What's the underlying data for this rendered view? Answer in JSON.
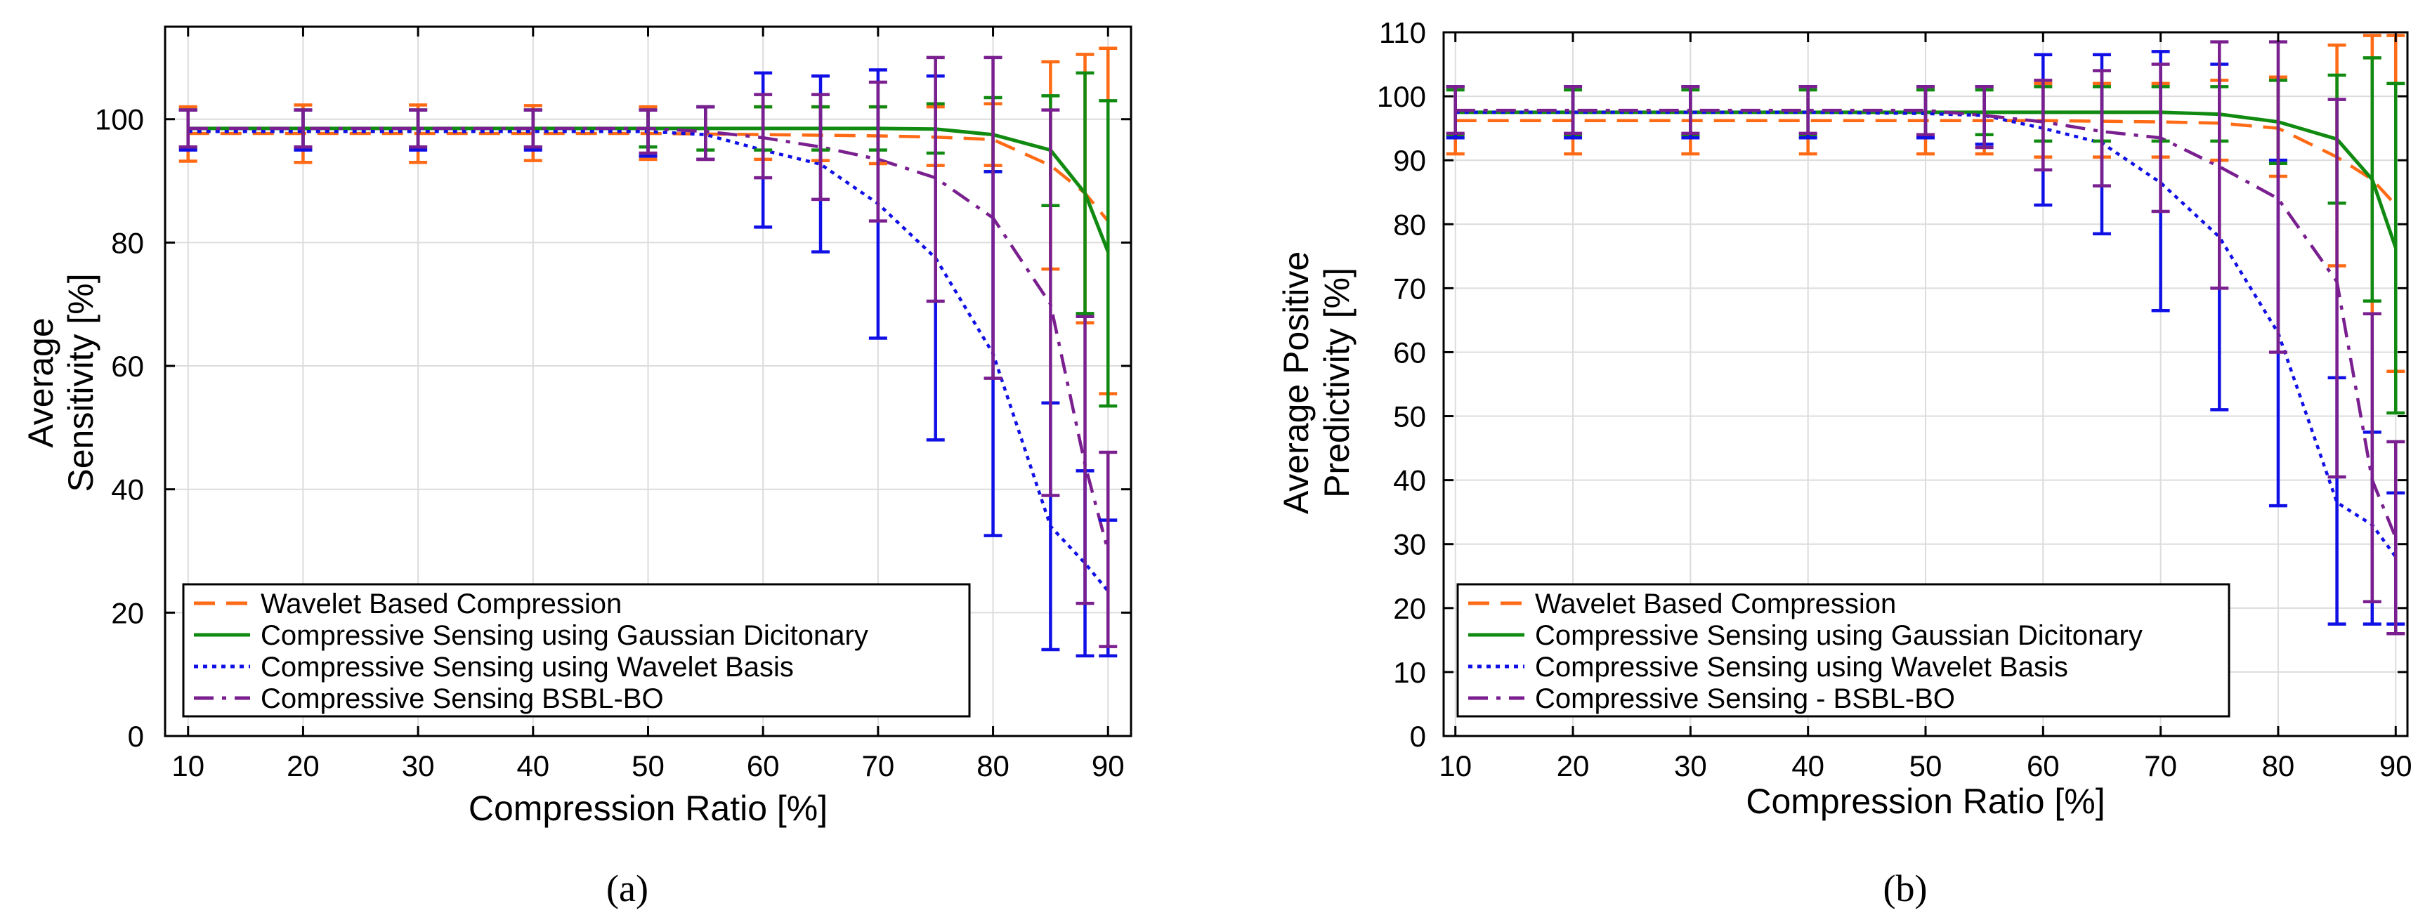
{
  "figure": {
    "captions": [
      "(a)",
      "(b)"
    ]
  },
  "colors": {
    "wavelet": "#ff6a14",
    "gaussian": "#108a10",
    "wavbasis": "#1010e6",
    "bsbl": "#7a1f8f",
    "grid": "#dcdcdc",
    "axis": "#000000"
  },
  "chart_data": [
    {
      "type": "line",
      "title": "",
      "xlabel": "Compression Ratio [%]",
      "ylabel": [
        "Average",
        "Sensitivity [%]"
      ],
      "xlim": [
        8,
        92
      ],
      "ylim": [
        0,
        115
      ],
      "xticks": [
        10,
        20,
        30,
        40,
        50,
        60,
        70,
        80,
        90
      ],
      "yticks": [
        0,
        20,
        40,
        60,
        80,
        100
      ],
      "grid": true,
      "legend_position": "bottom-left",
      "x": [
        10,
        20,
        30,
        40,
        50,
        55,
        60,
        65,
        70,
        75,
        80,
        85,
        88,
        90
      ],
      "series": [
        {
          "name": "Wavelet Based Compression",
          "style": "dashed",
          "color_key": "wavelet",
          "values": [
            97.7,
            97.7,
            97.7,
            97.7,
            97.7,
            97.6,
            97.5,
            97.4,
            97.3,
            97.1,
            96.7,
            92.5,
            88.0,
            83.5
          ],
          "err_low": [
            93.2,
            93.0,
            93.0,
            93.3,
            93.5,
            93.5,
            93.5,
            93.3,
            92.8,
            92.5,
            92.5,
            75.7,
            67.0,
            55.5
          ],
          "err_high": [
            102.0,
            102.3,
            102.3,
            102.2,
            102.0,
            102.0,
            102.0,
            102.0,
            102.0,
            102.0,
            102.5,
            109.3,
            110.5,
            111.5
          ]
        },
        {
          "name": "Compressive Sensing using Gaussian Dicitonary",
          "style": "solid",
          "color_key": "gaussian",
          "values": [
            98.5,
            98.5,
            98.5,
            98.5,
            98.5,
            98.5,
            98.5,
            98.5,
            98.5,
            98.4,
            97.5,
            95.0,
            88.0,
            78.5
          ],
          "err_low": [
            95.5,
            95.5,
            95.5,
            95.5,
            95.5,
            95.0,
            95.0,
            95.0,
            95.0,
            94.5,
            91.5,
            86.0,
            68.5,
            53.5
          ],
          "err_high": [
            101.5,
            101.5,
            101.5,
            101.5,
            101.5,
            102.0,
            102.0,
            102.0,
            102.0,
            102.5,
            103.5,
            103.8,
            107.5,
            103.0
          ]
        },
        {
          "name": "Compressive Sensing using Wavelet Basis",
          "style": "dotted",
          "color_key": "wavbasis",
          "values": [
            98.0,
            98.0,
            98.0,
            98.0,
            98.0,
            97.5,
            95.0,
            92.7,
            86.3,
            77.5,
            62.0,
            34.0,
            28.0,
            23.5
          ],
          "err_low": [
            95.0,
            95.0,
            95.0,
            95.0,
            94.0,
            93.5,
            82.5,
            78.5,
            64.5,
            48.0,
            32.5,
            14.0,
            13.0,
            13.0
          ],
          "err_high": [
            101.5,
            101.5,
            101.5,
            101.5,
            101.5,
            102.0,
            107.5,
            107.0,
            108.0,
            107.0,
            91.5,
            54.0,
            43.0,
            35.0
          ]
        },
        {
          "name": "Compressive Sensing BSBL-BO",
          "style": "dashdot",
          "color_key": "bsbl",
          "values": [
            98.5,
            98.5,
            98.5,
            98.5,
            98.5,
            98.0,
            97.0,
            95.5,
            93.5,
            90.5,
            84.0,
            70.0,
            44.0,
            30.0
          ],
          "err_low": [
            95.5,
            95.5,
            95.5,
            95.5,
            94.5,
            93.5,
            90.5,
            87.0,
            83.5,
            70.5,
            58.0,
            39.0,
            21.5,
            14.5
          ],
          "err_high": [
            101.5,
            101.5,
            101.5,
            101.5,
            101.5,
            102.0,
            104.0,
            104.0,
            106.0,
            110.0,
            110.0,
            101.5,
            68.0,
            46.0
          ]
        }
      ]
    },
    {
      "type": "line",
      "title": "",
      "xlabel": "Compression Ratio [%]",
      "ylabel": [
        "Average Positive",
        "Predictivity [%]"
      ],
      "xlim": [
        9,
        91
      ],
      "ylim": [
        0,
        110
      ],
      "xticks": [
        10,
        20,
        30,
        40,
        50,
        60,
        70,
        80,
        90
      ],
      "yticks": [
        0,
        10,
        20,
        30,
        40,
        50,
        60,
        70,
        80,
        90,
        100,
        110
      ],
      "grid": true,
      "legend_position": "bottom-left",
      "x": [
        10,
        20,
        30,
        40,
        50,
        55,
        60,
        65,
        70,
        75,
        80,
        85,
        88,
        90
      ],
      "series": [
        {
          "name": "Wavelet Based Compression",
          "style": "dashed",
          "color_key": "wavelet",
          "values": [
            96.2,
            96.2,
            96.2,
            96.2,
            96.2,
            96.2,
            96.2,
            96.1,
            96.0,
            95.8,
            95.0,
            90.5,
            87.0,
            83.0
          ],
          "err_low": [
            91.0,
            91.0,
            91.0,
            91.0,
            91.0,
            91.0,
            90.5,
            90.5,
            90.5,
            90.0,
            87.5,
            73.5,
            66.0,
            57.0
          ],
          "err_high": [
            101.5,
            101.5,
            101.5,
            101.5,
            101.5,
            101.5,
            102.0,
            102.0,
            102.0,
            102.5,
            103.0,
            108.0,
            109.5,
            109.5
          ]
        },
        {
          "name": "Compressive Sensing using Gaussian Dicitonary",
          "style": "solid",
          "color_key": "gaussian",
          "values": [
            97.5,
            97.5,
            97.5,
            97.5,
            97.5,
            97.5,
            97.5,
            97.5,
            97.5,
            97.2,
            96.0,
            93.3,
            87.0,
            76.3
          ],
          "err_low": [
            94.0,
            94.0,
            94.0,
            94.0,
            94.0,
            94.0,
            93.0,
            93.0,
            93.0,
            93.0,
            89.5,
            83.3,
            68.0,
            50.5
          ],
          "err_high": [
            101.0,
            101.0,
            101.0,
            101.0,
            101.0,
            101.0,
            101.5,
            101.5,
            101.5,
            101.5,
            102.5,
            103.3,
            106.0,
            102.0
          ]
        },
        {
          "name": "Compressive Sensing using Wavelet Basis",
          "style": "dotted",
          "color_key": "wavbasis",
          "values": [
            97.5,
            97.5,
            97.5,
            97.5,
            97.3,
            97.0,
            95.0,
            92.7,
            86.5,
            78.0,
            63.0,
            36.5,
            33.0,
            28.0
          ],
          "err_low": [
            93.5,
            93.5,
            93.5,
            93.5,
            93.5,
            92.5,
            83.0,
            78.5,
            66.5,
            51.0,
            36.0,
            17.5,
            17.5,
            17.5
          ],
          "err_high": [
            101.5,
            101.5,
            101.5,
            101.5,
            101.5,
            101.5,
            106.5,
            106.5,
            107.0,
            105.0,
            90.0,
            56.0,
            47.5,
            38.0
          ]
        },
        {
          "name": "Compressive Sensing - BSBL-BO",
          "style": "dashdot",
          "color_key": "bsbl",
          "values": [
            97.8,
            97.8,
            97.8,
            97.8,
            97.8,
            97.0,
            96.0,
            94.5,
            93.5,
            89.0,
            84.0,
            71.0,
            40.0,
            31.0
          ],
          "err_low": [
            94.2,
            94.2,
            94.2,
            94.2,
            94.0,
            92.0,
            88.5,
            86.0,
            82.0,
            70.0,
            60.0,
            40.5,
            21.0,
            16.0
          ],
          "err_high": [
            101.5,
            101.5,
            101.5,
            101.5,
            101.5,
            101.5,
            102.5,
            104.0,
            105.0,
            108.5,
            108.5,
            99.5,
            66.0,
            46.0
          ]
        }
      ]
    }
  ]
}
